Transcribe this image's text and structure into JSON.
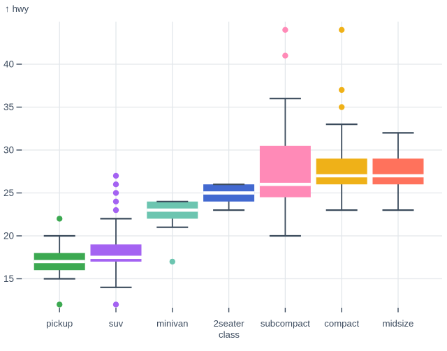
{
  "chart_data": {
    "type": "boxplot",
    "title": "",
    "xlabel": "class",
    "ylabel": "hwy",
    "ylabel_arrow": "↑",
    "x_categories": [
      "pickup",
      "suv",
      "minivan",
      "2seater",
      "subcompact",
      "compact",
      "midsize"
    ],
    "y_ticks": [
      15,
      20,
      25,
      30,
      35,
      40
    ],
    "ylim": [
      11.5,
      44.5
    ],
    "grid": true,
    "legend": false,
    "series": [
      {
        "category": "pickup",
        "color": "#3ca951",
        "whisker_low": 15,
        "q1": 16,
        "median": 17,
        "q3": 18,
        "whisker_high": 20,
        "outliers": [
          12,
          22
        ]
      },
      {
        "category": "suv",
        "color": "#a463f2",
        "whisker_low": 14,
        "q1": 17,
        "median": 17.5,
        "q3": 19,
        "whisker_high": 22,
        "outliers": [
          12,
          23,
          24,
          25,
          26,
          27
        ]
      },
      {
        "category": "minivan",
        "color": "#6cc5b0",
        "whisker_low": 21,
        "q1": 22,
        "median": 23,
        "q3": 24,
        "whisker_high": 24,
        "outliers": [
          17
        ]
      },
      {
        "category": "2seater",
        "color": "#4269d0",
        "whisker_low": 23,
        "q1": 24,
        "median": 25,
        "q3": 26,
        "whisker_high": 26,
        "outliers": []
      },
      {
        "category": "subcompact",
        "color": "#ff8ab7",
        "whisker_low": 20,
        "q1": 24.5,
        "median": 26,
        "q3": 30.5,
        "whisker_high": 36,
        "outliers": [
          41,
          44
        ]
      },
      {
        "category": "compact",
        "color": "#efb118",
        "whisker_low": 23,
        "q1": 26,
        "median": 27,
        "q3": 29,
        "whisker_high": 33,
        "outliers": [
          35,
          37,
          44
        ]
      },
      {
        "category": "midsize",
        "color": "#ff725c",
        "whisker_low": 23,
        "q1": 26,
        "median": 27,
        "q3": 29,
        "whisker_high": 32,
        "outliers": []
      }
    ],
    "style": {
      "text_color": "#3d4c5f",
      "rule_color": "#3b4b5c",
      "grid_color": "#e3e7eb",
      "median_color": "#ffffff",
      "background": "#ffffff"
    }
  }
}
